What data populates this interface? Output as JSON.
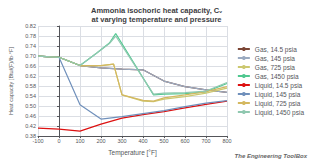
{
  "chart_data": {
    "type": "line",
    "title": "Ammonia isochoric heat capacity, Cᵥ\nat varying temperature and pressure",
    "x_label": "Temperature [°F]",
    "y_label": "Heat capacity [Btu/(F)/lb·°F]",
    "xlim": [
      -100,
      800
    ],
    "ylim": [
      0.38,
      0.82
    ],
    "xticks": [
      -100,
      0,
      100,
      200,
      300,
      400,
      500,
      600,
      700,
      800
    ],
    "yticks": [
      0.38,
      0.42,
      0.46,
      {
        "value": 0.5,
        "label": "0.50"
      },
      0.54,
      0.58,
      0.62,
      0.66,
      {
        "value": 0.7,
        "label": "0.70"
      },
      0.74,
      0.78,
      0.82
    ],
    "grid": true,
    "legend": "right",
    "annotations": [
      "The Engineering ToolBox"
    ],
    "series": [
      {
        "name": "Gas, 14.5 psia",
        "color": "#7b4535",
        "x": [
          -100,
          0,
          100,
          200,
          300,
          400,
          500,
          600,
          700,
          800
        ],
        "values": [
          0.7,
          0.695,
          0.662,
          0.653,
          0.648,
          0.645,
          0.6,
          0.578,
          0.565,
          0.555
        ]
      },
      {
        "name": "Gas, 145 psia",
        "color": "#9aaac0",
        "x": [
          -100,
          0,
          100,
          200,
          300,
          400,
          500,
          600,
          700,
          800
        ],
        "values": [
          0.7,
          0.695,
          0.662,
          0.653,
          0.648,
          0.645,
          0.6,
          0.578,
          0.565,
          0.555
        ]
      },
      {
        "name": "Gas, 725 psia",
        "color": "#ccc870",
        "x": [
          -100,
          0,
          100,
          200,
          260,
          300,
          400,
          450,
          500,
          600,
          700,
          800
        ],
        "values": [
          0.7,
          0.695,
          0.662,
          0.662,
          0.668,
          0.545,
          0.52,
          0.518,
          0.528,
          0.538,
          0.552,
          0.572
        ]
      },
      {
        "name": "Gas, 1450 psia",
        "color": "#50c890",
        "x": [
          -100,
          0,
          100,
          180,
          240,
          270,
          450,
          500,
          600,
          700,
          800
        ],
        "values": [
          0.7,
          0.695,
          0.662,
          0.712,
          0.752,
          0.79,
          0.545,
          0.548,
          0.55,
          0.557,
          0.59
        ]
      },
      {
        "name": "Liquid, 14.5 psia",
        "color": "#dd1111",
        "x": [
          -100,
          0,
          100,
          200,
          300,
          400,
          500,
          600,
          700,
          800
        ],
        "values": [
          0.412,
          0.408,
          0.4,
          0.428,
          0.452,
          0.466,
          0.478,
          0.493,
          0.507,
          0.52
        ]
      },
      {
        "name": "Liquid, 145 psia",
        "color": "#7090bb",
        "x": [
          -100,
          0,
          100,
          200,
          300,
          400,
          500,
          600,
          700,
          800
        ],
        "values": [
          0.7,
          0.695,
          0.505,
          0.448,
          0.458,
          0.47,
          0.482,
          0.498,
          0.512,
          0.522
        ]
      },
      {
        "name": "Liquid, 725 psia",
        "color": "#d4b860",
        "x": [
          -100,
          0,
          100,
          200,
          260,
          300,
          400,
          450,
          500,
          600,
          700,
          800
        ],
        "values": [
          0.7,
          0.695,
          0.662,
          0.662,
          0.668,
          0.545,
          0.523,
          0.52,
          0.533,
          0.545,
          0.558,
          0.578
        ]
      },
      {
        "name": "Liquid, 1450 psia",
        "color": "#90c8b0",
        "x": [
          -100,
          0,
          100,
          180,
          240,
          270,
          450,
          500,
          600,
          700,
          800
        ],
        "values": [
          0.7,
          0.695,
          0.662,
          0.712,
          0.75,
          0.78,
          0.548,
          0.552,
          0.554,
          0.56,
          0.594
        ]
      }
    ]
  }
}
